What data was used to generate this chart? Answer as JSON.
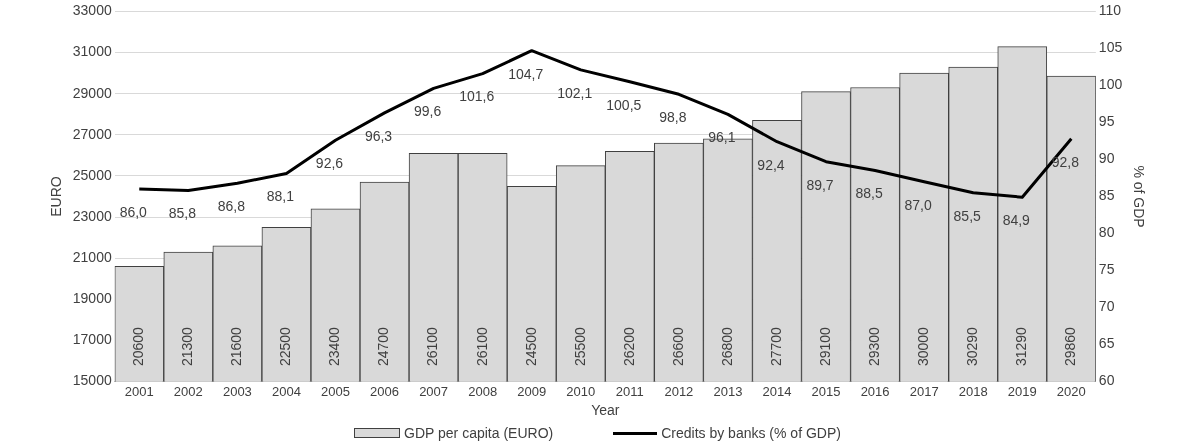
{
  "chart_data": {
    "type": "bar",
    "categories": [
      "2001",
      "2002",
      "2003",
      "2004",
      "2005",
      "2006",
      "2007",
      "2008",
      "2009",
      "2010",
      "2011",
      "2012",
      "2013",
      "2014",
      "2015",
      "2016",
      "2017",
      "2018",
      "2019",
      "2020"
    ],
    "series": [
      {
        "name": "GDP per capita (EURO)",
        "color": "#d9d9d9",
        "axis": "y",
        "values": [
          20600,
          21300,
          21600,
          22500,
          23400,
          24700,
          26100,
          26100,
          24500,
          25500,
          26200,
          26600,
          26800,
          27700,
          29100,
          29300,
          30000,
          30290,
          31290,
          29860
        ],
        "value_labels": [
          "20600",
          "21300",
          "21600",
          "22500",
          "23400",
          "24700",
          "26100",
          "26100",
          "24500",
          "25500",
          "26200",
          "26600",
          "26800",
          "27700",
          "29100",
          "29300",
          "30000",
          "30290",
          "31290",
          "29860"
        ]
      },
      {
        "type": "line",
        "name": "Credits by banks (% of GDP)",
        "color": "#000000",
        "axis": "y2",
        "values": [
          86.0,
          85.8,
          86.8,
          88.1,
          92.6,
          96.3,
          99.6,
          101.6,
          104.7,
          102.1,
          100.5,
          98.8,
          96.1,
          92.4,
          89.7,
          88.5,
          87.0,
          85.5,
          84.9,
          92.8
        ],
        "value_labels": [
          "86,0",
          "85,8",
          "86,8",
          "88,1",
          "92,6",
          "96,3",
          "99,6",
          "101,6",
          "104,7",
          "102,1",
          "100,5",
          "98,8",
          "96,1",
          "92,4",
          "89,7",
          "88,5",
          "87,0",
          "85,5",
          "84,9",
          "92,8"
        ]
      }
    ],
    "xlabel": "Year",
    "ylabel": "EURO",
    "y2label": "% of GDP",
    "ylim": [
      15000,
      33000
    ],
    "yticks": [
      15000,
      17000,
      19000,
      21000,
      23000,
      25000,
      27000,
      29000,
      31000,
      33000
    ],
    "y2lim": [
      60,
      110
    ],
    "y2ticks": [
      60,
      65,
      70,
      75,
      80,
      85,
      90,
      95,
      100,
      105,
      110
    ],
    "grid": "y",
    "legend": "bottom"
  }
}
